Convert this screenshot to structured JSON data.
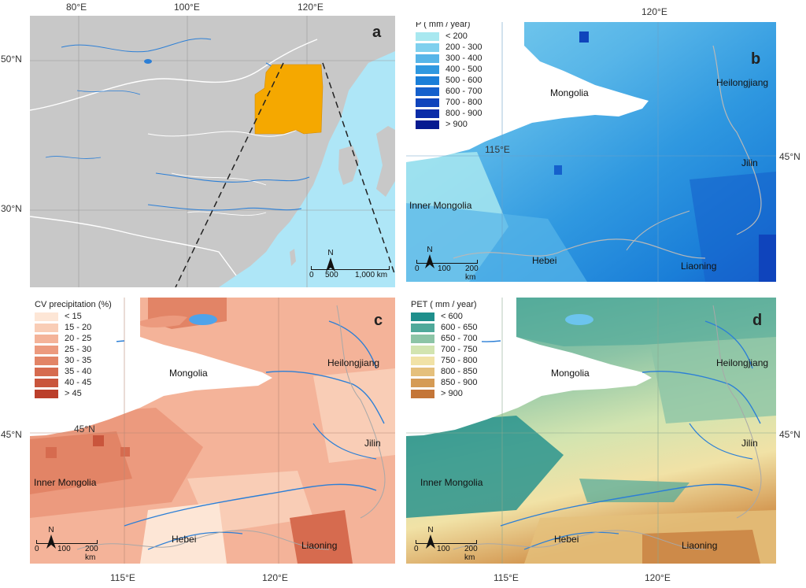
{
  "panel_a": {
    "letter": "a",
    "top_ticks": [
      "80°E",
      "100°E",
      "120°E"
    ],
    "left_ticks": [
      "50°N",
      "30°N"
    ],
    "scale_labels": [
      "0",
      "500",
      "1,000 km"
    ],
    "north": "N"
  },
  "panel_b": {
    "letter": "b",
    "top_tick": "120°E",
    "inner_lon": "115°E",
    "right_lat": "45°N",
    "legend_title": "P ( mm / year)",
    "legend": [
      {
        "label": "< 200",
        "color": "#a8e8f0"
      },
      {
        "label": "200 - 300",
        "color": "#7fd0ee"
      },
      {
        "label": "300 - 400",
        "color": "#57b5e8"
      },
      {
        "label": "400 - 500",
        "color": "#2f98e0"
      },
      {
        "label": "500 - 600",
        "color": "#1a7ed8"
      },
      {
        "label": "600 - 700",
        "color": "#1560cc"
      },
      {
        "label": "700 - 800",
        "color": "#0f44bc"
      },
      {
        "label": "800 - 900",
        "color": "#0a2ca8"
      },
      {
        "label": "> 900",
        "color": "#051a90"
      }
    ],
    "places": {
      "mongolia": "Mongolia",
      "heilongjiang": "Heilongjiang",
      "jilin": "Jilin",
      "inner_mongolia": "Inner Mongolia",
      "hebei": "Hebei",
      "liaoning": "Liaoning"
    },
    "scale_labels": [
      "0",
      "100",
      "200 km"
    ],
    "north": "N"
  },
  "panel_c": {
    "letter": "c",
    "legend_title": "CV precipitation (%)",
    "legend": [
      {
        "label": "< 15",
        "color": "#fde6d6"
      },
      {
        "label": "15 - 20",
        "color": "#f9cdb6"
      },
      {
        "label": "20 - 25",
        "color": "#f4b399"
      },
      {
        "label": "25 - 30",
        "color": "#ec9a7e"
      },
      {
        "label": "30 - 35",
        "color": "#e28466"
      },
      {
        "label": "35 - 40",
        "color": "#d66b4f"
      },
      {
        "label": "40 - 45",
        "color": "#c9553c"
      },
      {
        "label": "> 45",
        "color": "#bb3f2b"
      }
    ],
    "places": {
      "mongolia": "Mongolia",
      "heilongjiang": "Heilongjiang",
      "jilin": "Jilin",
      "inner_mongolia": "Inner Mongolia",
      "hebei": "Hebei",
      "liaoning": "Liaoning"
    },
    "inner_lat": "45°N",
    "left_lat": "45°N",
    "bottom_ticks": [
      "115°E",
      "120°E"
    ],
    "scale_labels": [
      "0",
      "100",
      "200 km"
    ],
    "north": "N"
  },
  "panel_d": {
    "letter": "d",
    "legend_title": "PET ( mm / year)",
    "legend": [
      {
        "label": "< 600",
        "color": "#1f8f8c"
      },
      {
        "label": "600 - 650",
        "color": "#4fa99a"
      },
      {
        "label": "650 - 700",
        "color": "#8cc4a6"
      },
      {
        "label": "700 - 750",
        "color": "#d2e4b0"
      },
      {
        "label": "750 - 800",
        "color": "#f1e2a6"
      },
      {
        "label": "800 - 850",
        "color": "#e5c07c"
      },
      {
        "label": "850 - 900",
        "color": "#d59b55"
      },
      {
        "label": "> 900",
        "color": "#c47638"
      }
    ],
    "places": {
      "mongolia": "Mongolia",
      "heilongjiang": "Heilongjiang",
      "jilin": "Jilin",
      "inner_mongolia": "Inner Mongolia",
      "hebei": "Hebei",
      "liaoning": "Liaoning"
    },
    "right_lat": "45°N",
    "bottom_ticks": [
      "115°E",
      "120°E"
    ],
    "scale_labels": [
      "0",
      "100",
      "200 km"
    ],
    "north": "N"
  },
  "colors": {
    "land": "#c8c8c8",
    "sea": "#aee6f7",
    "study_area": "#f5a800",
    "river": "#2c7fd6",
    "boundary": "#ffffff",
    "province_line": "#a8a8a8"
  }
}
